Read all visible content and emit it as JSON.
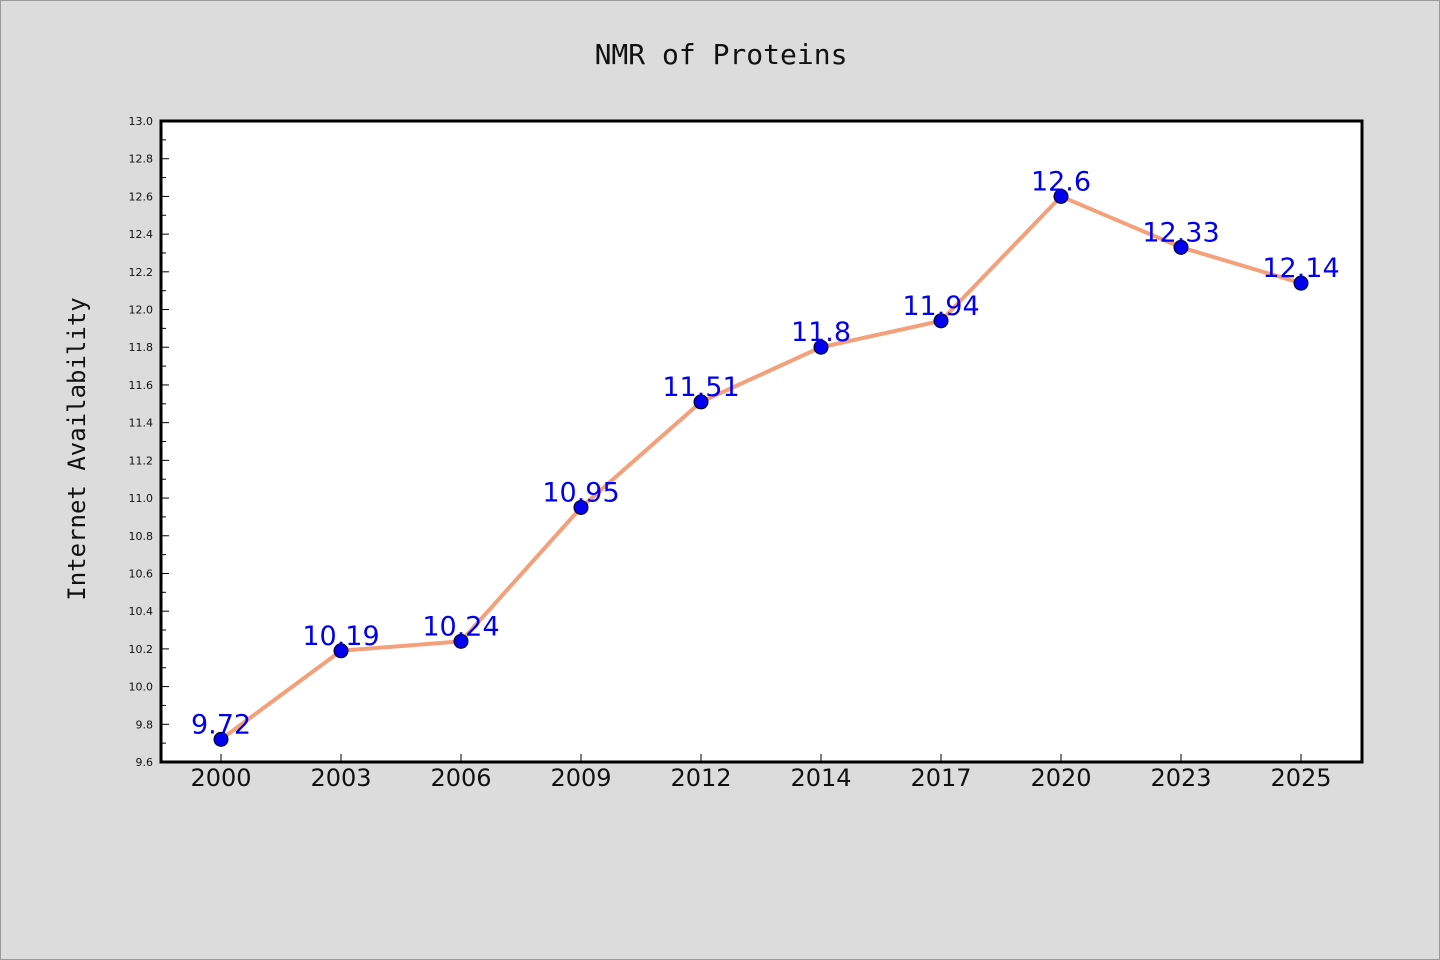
{
  "chart_data": {
    "type": "line",
    "title": "NMR of Proteins",
    "xlabel": "",
    "ylabel": "Internet Availability",
    "categories": [
      "2000",
      "2003",
      "2006",
      "2009",
      "2012",
      "2014",
      "2017",
      "2020",
      "2023",
      "2025"
    ],
    "series": [
      {
        "values": [
          9.72,
          10.19,
          10.24,
          10.95,
          11.51,
          11.8,
          11.94,
          12.6,
          12.33,
          12.14
        ],
        "labels": [
          "9.72",
          "10.19",
          "10.24",
          "10.95",
          "11.51",
          "11.8",
          "11.94",
          "12.6",
          "12.33",
          "12.14"
        ],
        "line_color": "#f4a07a",
        "marker_color": "#0000ee",
        "label_color": "#0000ee"
      }
    ],
    "ylim": [
      9.6,
      13.0
    ],
    "yticks": [
      "9.6",
      "9.8",
      "10.0",
      "10.2",
      "10.4",
      "10.6",
      "10.8",
      "11.0",
      "11.2",
      "11.4",
      "11.6",
      "11.8",
      "12.0",
      "12.2",
      "12.4",
      "12.6",
      "12.8",
      "13.0"
    ],
    "grid": false,
    "legend": "none"
  }
}
